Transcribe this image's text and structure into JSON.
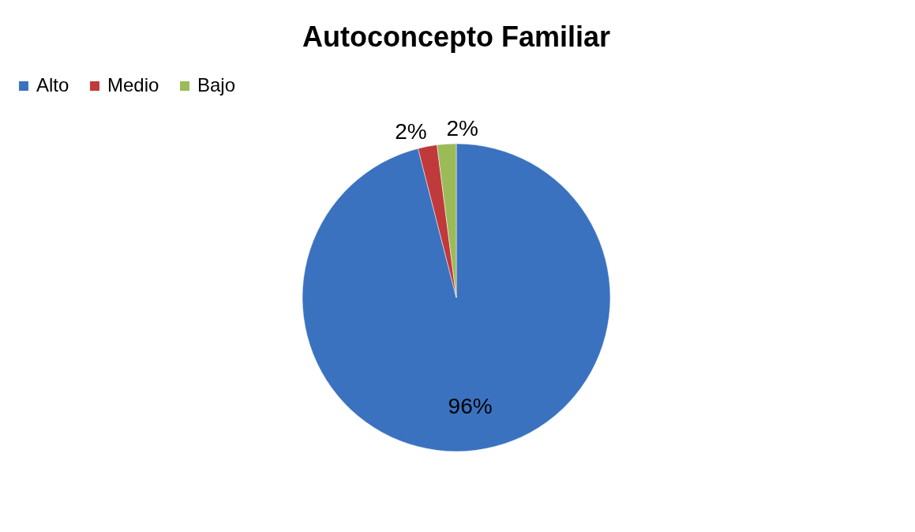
{
  "chart_data": {
    "type": "pie",
    "title": "Autoconcepto Familiar",
    "categories": [
      "Alto",
      "Medio",
      "Bajo"
    ],
    "values": [
      96,
      2,
      2
    ],
    "colors": [
      "#3a72bf",
      "#c0393b",
      "#9bbb59"
    ],
    "value_labels": [
      "96%",
      "2%",
      "2%"
    ],
    "legend": "top left"
  }
}
